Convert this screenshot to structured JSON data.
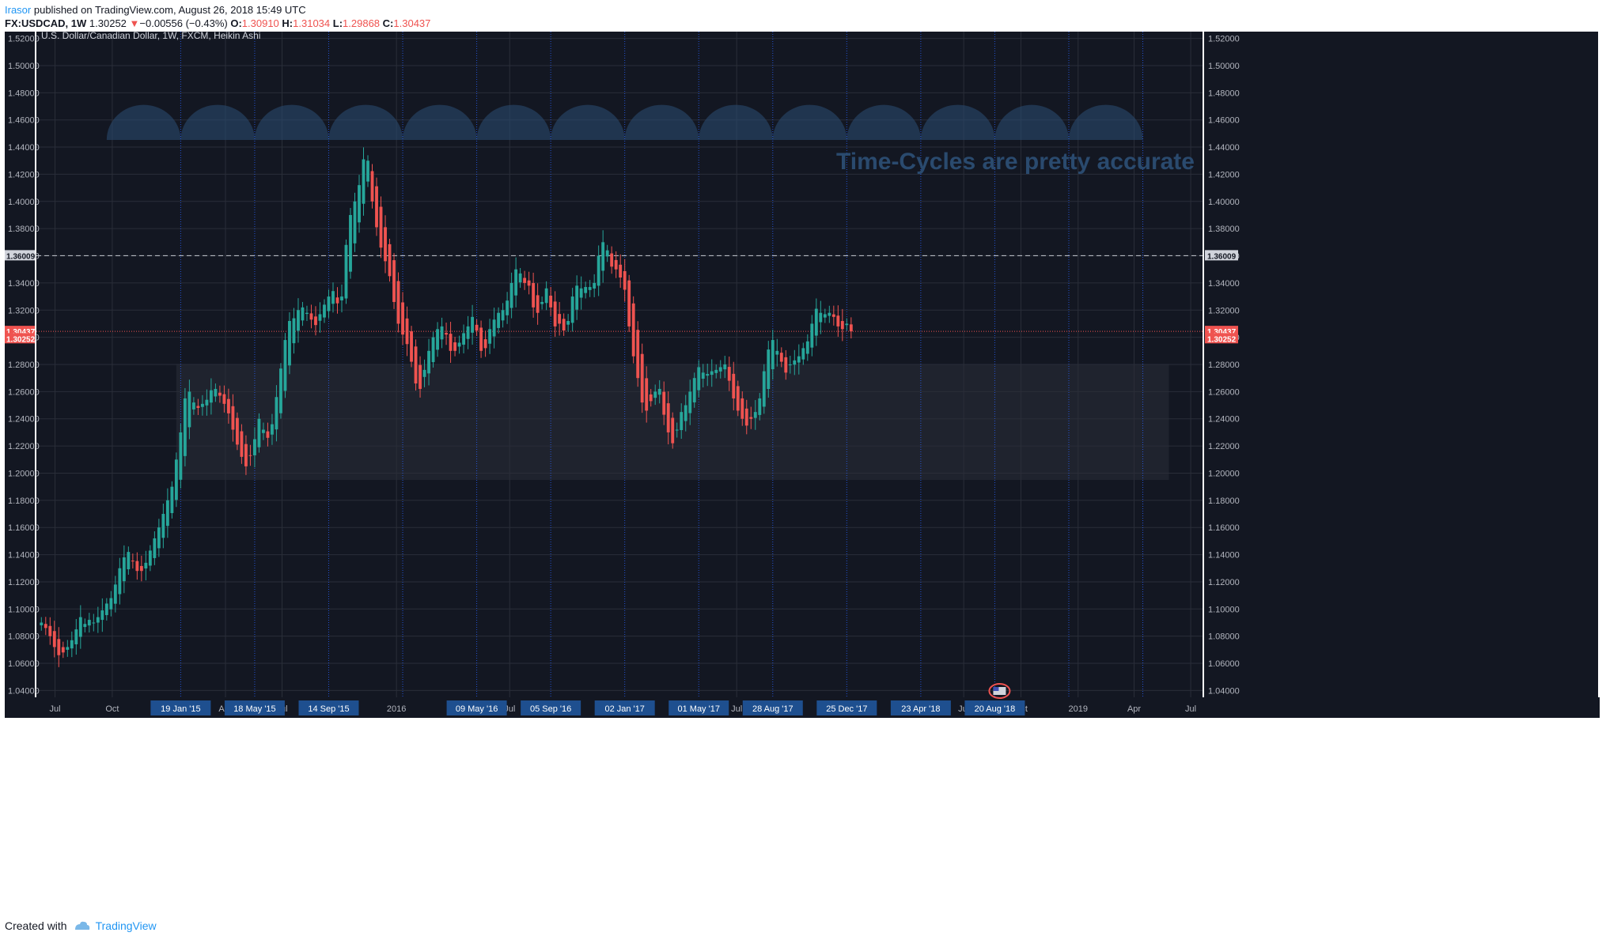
{
  "header": {
    "user": "Irasor",
    "published": "published on TradingView.com, August 26, 2018 15:49 UTC",
    "symbol": "FX:USDCAD, 1W",
    "last": "1.30252",
    "change": "−0.00556 (−0.43%)",
    "o_label": "O:",
    "o": "1.30910",
    "h_label": "H:",
    "h": "1.31034",
    "l_label": "L:",
    "l": "1.29868",
    "c_label": "C:",
    "c": "1.30437"
  },
  "footer": {
    "created_with": "Created with",
    "brand": "TradingView"
  },
  "chart_data": {
    "type": "candlestick",
    "title": "U.S. Dollar/Canadian Dollar, 1W, FXCM, Heikin Ashi",
    "annotation": "Time-Cycles are pretty accurate",
    "ylim": [
      1.035,
      1.525
    ],
    "y_ticks": [
      "1.52000",
      "1.50000",
      "1.48000",
      "1.46000",
      "1.44000",
      "1.42000",
      "1.40000",
      "1.38000",
      "1.36000",
      "1.34000",
      "1.32000",
      "1.30000",
      "1.28000",
      "1.26000",
      "1.24000",
      "1.22000",
      "1.20000",
      "1.18000",
      "1.16000",
      "1.14000",
      "1.12000",
      "1.10000",
      "1.08000",
      "1.06000",
      "1.04000"
    ],
    "x_start_date": "2014-06-01",
    "x_end_date": "2019-07-20",
    "x_labels": [
      {
        "date": "2014-07-01",
        "label": "Jul"
      },
      {
        "date": "2014-10-01",
        "label": "Oct"
      },
      {
        "date": "2015-04-01",
        "label": "Apr"
      },
      {
        "date": "2015-07-01",
        "label": "Jul"
      },
      {
        "date": "2016-01-01",
        "label": "2016"
      },
      {
        "date": "2016-07-01",
        "label": "Jul"
      },
      {
        "date": "2017-07-01",
        "label": "Jul"
      },
      {
        "date": "2018-07-01",
        "label": "Jul"
      },
      {
        "date": "2018-10-01",
        "label": "Oct"
      },
      {
        "date": "2019-01-01",
        "label": "2019"
      },
      {
        "date": "2019-04-01",
        "label": "Apr"
      },
      {
        "date": "2019-07-01",
        "label": "Jul"
      }
    ],
    "cycle_markers": [
      {
        "date": "2015-01-19",
        "label": "19 Jan '15"
      },
      {
        "date": "2015-05-18",
        "label": "18 May '15"
      },
      {
        "date": "2015-09-14",
        "label": "14 Sep '15"
      },
      {
        "date": "2016-01-11",
        "label": ""
      },
      {
        "date": "2016-05-09",
        "label": "09 May '16"
      },
      {
        "date": "2016-09-05",
        "label": "05 Sep '16"
      },
      {
        "date": "2017-01-02",
        "label": "02 Jan '17"
      },
      {
        "date": "2017-05-01",
        "label": "01 May '17"
      },
      {
        "date": "2017-08-28",
        "label": "28 Aug '17"
      },
      {
        "date": "2017-12-25",
        "label": "25 Dec '17"
      },
      {
        "date": "2018-04-23",
        "label": "23 Apr '18"
      },
      {
        "date": "2018-08-20",
        "label": "20 Aug '18"
      },
      {
        "date": "2018-12-17",
        "label": ""
      },
      {
        "date": "2019-04-15",
        "label": ""
      }
    ],
    "horizontal_lines": [
      {
        "price": 1.36009,
        "label": "1.36009",
        "style": "dashed",
        "color": "#c8ccd4"
      },
      {
        "price": 1.30437,
        "label": "1.30437",
        "style": "dotted",
        "color": "#ef5350"
      },
      {
        "price": 1.30252,
        "label": "1.30252",
        "style": "none",
        "color": "#ef5350"
      }
    ],
    "range_box": {
      "from_date": "2015-01-12",
      "to_date": "2019-05-27",
      "top": 1.28,
      "bottom": 1.195
    },
    "colors": {
      "up": "#26a69a",
      "down": "#ef5350",
      "background": "#131722",
      "grid": "#2a2e39",
      "cycle_line": "#2962ff",
      "cycle_arc": "#2a4a6e",
      "annotation": "#2a4a6e"
    },
    "series_start_date": "2014-06-09",
    "series": [
      1.09,
      1.086,
      1.08,
      1.072,
      1.066,
      1.068,
      1.072,
      1.077,
      1.085,
      1.094,
      1.089,
      1.092,
      1.09,
      1.094,
      1.099,
      1.104,
      1.108,
      1.118,
      1.13,
      1.138,
      1.142,
      1.135,
      1.128,
      1.128,
      1.134,
      1.143,
      1.152,
      1.16,
      1.17,
      1.18,
      1.19,
      1.21,
      1.23,
      1.255,
      1.26,
      1.252,
      1.248,
      1.251,
      1.254,
      1.261,
      1.262,
      1.257,
      1.251,
      1.244,
      1.232,
      1.221,
      1.212,
      1.205,
      1.213,
      1.225,
      1.24,
      1.232,
      1.226,
      1.236,
      1.256,
      1.277,
      1.298,
      1.312,
      1.314,
      1.32,
      1.322,
      1.318,
      1.313,
      1.309,
      1.317,
      1.324,
      1.33,
      1.334,
      1.325,
      1.33,
      1.368,
      1.39,
      1.4,
      1.412,
      1.431,
      1.43,
      1.4,
      1.381,
      1.366,
      1.356,
      1.345,
      1.326,
      1.31,
      1.302,
      1.295,
      1.282,
      1.266,
      1.262,
      1.276,
      1.29,
      1.3,
      1.306,
      1.308,
      1.302,
      1.29,
      1.29,
      1.296,
      1.303,
      1.308,
      1.315,
      1.305,
      1.29,
      1.292,
      1.306,
      1.313,
      1.318,
      1.32,
      1.327,
      1.34,
      1.35,
      1.347,
      1.34,
      1.338,
      1.322,
      1.318,
      1.326,
      1.336,
      1.322,
      1.308,
      1.31,
      1.305,
      1.312,
      1.33,
      1.338,
      1.336,
      1.337,
      1.337,
      1.34,
      1.36,
      1.37,
      1.364,
      1.352,
      1.35,
      1.344,
      1.335,
      1.308,
      1.286,
      1.27,
      1.252,
      1.246,
      1.253,
      1.26,
      1.262,
      1.243,
      1.23,
      1.222,
      1.232,
      1.245,
      1.25,
      1.26,
      1.27,
      1.278,
      1.274,
      1.273,
      1.275,
      1.276,
      1.278,
      1.28,
      1.268,
      1.255,
      1.246,
      1.24,
      1.235,
      1.24,
      1.245,
      1.255,
      1.275,
      1.291,
      1.298,
      1.29,
      1.282,
      1.274,
      1.28,
      1.283,
      1.286,
      1.292,
      1.297,
      1.31,
      1.321,
      1.318,
      1.317,
      1.318,
      1.315,
      1.308,
      1.306,
      1.31,
      1.30437
    ]
  }
}
